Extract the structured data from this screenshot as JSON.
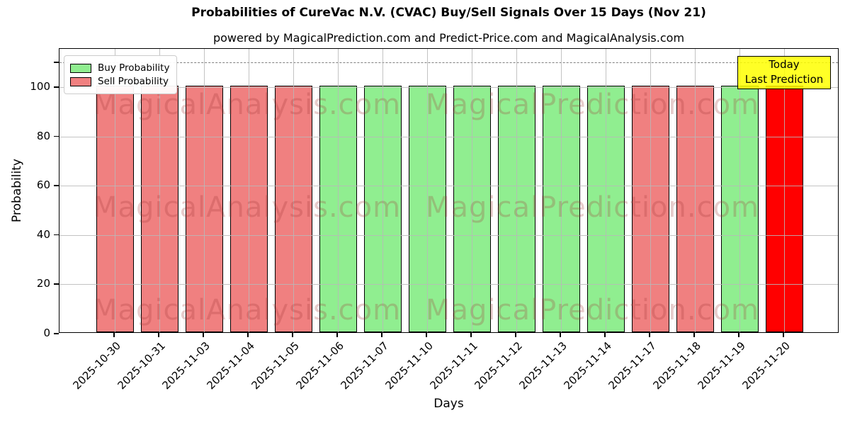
{
  "title": "Probabilities of CureVac N.V. (CVAC) Buy/Sell Signals Over 15 Days (Nov 21)",
  "subtitle": "powered by MagicalPrediction.com and Predict-Price.com and MagicalAnalysis.com",
  "legend": {
    "items": [
      {
        "label": "Buy Probability",
        "color": "#90ee90"
      },
      {
        "label": "Sell Probability",
        "color": "#f08080"
      }
    ]
  },
  "annotation": {
    "line1": "Today",
    "line2": "Last Prediction",
    "bg": "#ffff00"
  },
  "watermarks": {
    "left_text": "MagicalAnalysis.com",
    "right_text": "MagicalPrediction.com"
  },
  "colors": {
    "buy": "#90ee90",
    "sell": "#f08080",
    "today": "#ff0000",
    "grid": "#b9b9b9",
    "threshold": "#7f7f7f"
  },
  "chart_data": {
    "type": "bar",
    "title": "Probabilities of CureVac N.V. (CVAC) Buy/Sell Signals Over 15 Days (Nov 21)",
    "xlabel": "Days",
    "ylabel": "Probability",
    "ylim": [
      0,
      115.5
    ],
    "yticks": [
      0,
      20,
      40,
      60,
      80,
      100
    ],
    "grid": true,
    "legend_position": "upper left",
    "threshold_line": {
      "y": 110,
      "style": "dashed",
      "color": "#7f7f7f"
    },
    "categories": [
      "2025-10-30",
      "2025-10-31",
      "2025-11-03",
      "2025-11-04",
      "2025-11-05",
      "2025-11-06",
      "2025-11-07",
      "2025-11-10",
      "2025-11-11",
      "2025-11-12",
      "2025-11-13",
      "2025-11-14",
      "2025-11-17",
      "2025-11-18",
      "2025-11-19",
      "2025-11-20"
    ],
    "bars": [
      {
        "date": "2025-10-30",
        "value": 100,
        "signal": "sell"
      },
      {
        "date": "2025-10-31",
        "value": 100,
        "signal": "sell"
      },
      {
        "date": "2025-11-03",
        "value": 100,
        "signal": "sell"
      },
      {
        "date": "2025-11-04",
        "value": 100,
        "signal": "sell"
      },
      {
        "date": "2025-11-05",
        "value": 100,
        "signal": "sell"
      },
      {
        "date": "2025-11-06",
        "value": 100,
        "signal": "buy"
      },
      {
        "date": "2025-11-07",
        "value": 100,
        "signal": "buy"
      },
      {
        "date": "2025-11-10",
        "value": 100,
        "signal": "buy"
      },
      {
        "date": "2025-11-11",
        "value": 100,
        "signal": "buy"
      },
      {
        "date": "2025-11-12",
        "value": 100,
        "signal": "buy"
      },
      {
        "date": "2025-11-13",
        "value": 100,
        "signal": "buy"
      },
      {
        "date": "2025-11-14",
        "value": 100,
        "signal": "buy"
      },
      {
        "date": "2025-11-17",
        "value": 100,
        "signal": "sell"
      },
      {
        "date": "2025-11-18",
        "value": 100,
        "signal": "sell"
      },
      {
        "date": "2025-11-19",
        "value": 100,
        "signal": "buy"
      },
      {
        "date": "2025-11-20",
        "value": 100,
        "signal": "today"
      }
    ]
  }
}
